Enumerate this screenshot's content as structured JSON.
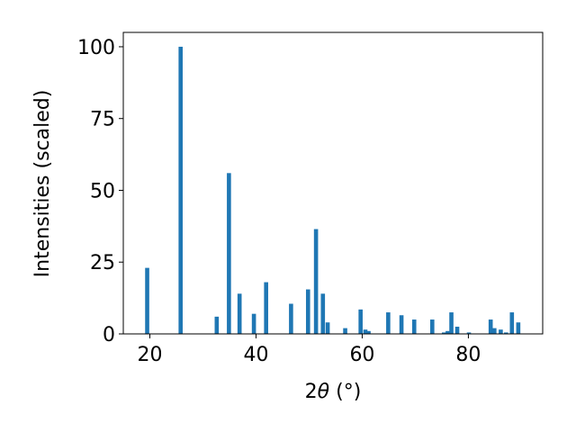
{
  "chart_data": {
    "type": "bar",
    "xlabel_prefix": "2",
    "xlabel_symbol": "θ",
    "xlabel_unit": " (°)",
    "ylabel": "Intensities (scaled)",
    "xlim": [
      15,
      94
    ],
    "ylim": [
      0,
      105
    ],
    "xticks": [
      20,
      40,
      60,
      80
    ],
    "yticks": [
      0,
      25,
      50,
      75,
      100
    ],
    "bar_color": "#1f77b4",
    "grid": false,
    "x": [
      19.5,
      25.8,
      32.6,
      34.9,
      36.9,
      39.6,
      41.9,
      46.6,
      49.8,
      51.3,
      52.6,
      53.5,
      56.8,
      59.7,
      60.6,
      61.2,
      64.9,
      67.4,
      69.8,
      73.2,
      75.4,
      76.1,
      76.8,
      77.9,
      80.1,
      84.2,
      84.9,
      86.1,
      87.1,
      88.2,
      89.4
    ],
    "values": [
      23,
      100,
      6,
      56,
      14,
      7,
      18,
      10.5,
      15.5,
      36.5,
      14,
      4,
      2,
      8.5,
      1.5,
      1,
      7.5,
      6.5,
      5,
      5,
      0.5,
      1,
      7.5,
      2.5,
      0.5,
      5,
      2,
      1.5,
      0.5,
      7.5,
      4
    ]
  }
}
